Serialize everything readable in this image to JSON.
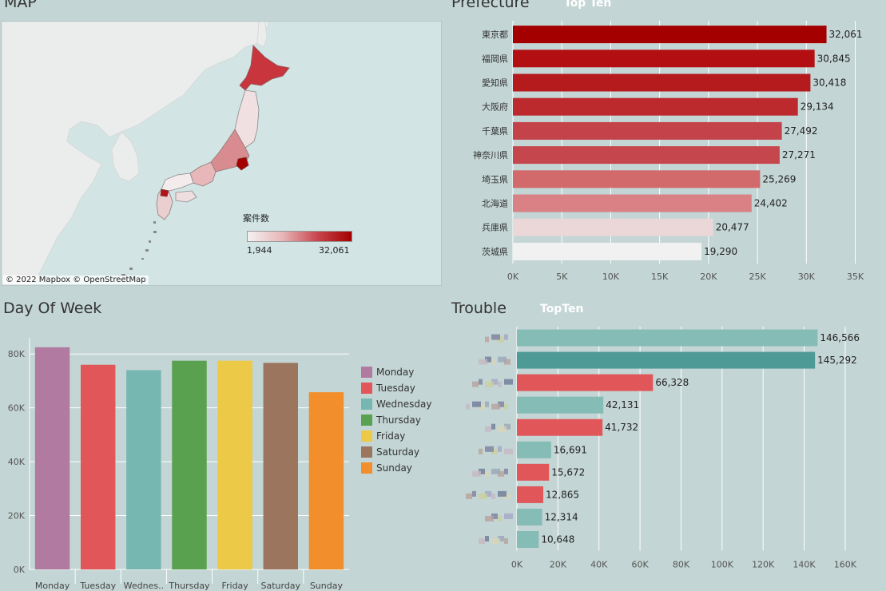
{
  "map": {
    "title": "MAP",
    "legend": {
      "title": "案件数",
      "min_label": "1,944",
      "max_label": "32,061"
    },
    "attribution": "© 2022 Mapbox  © OpenStreetMap"
  },
  "prefecture": {
    "title": "Prefecture",
    "subtitle": "Top Ten"
  },
  "day_of_week": {
    "title": "Day Of Week"
  },
  "trouble": {
    "title": "Trouble",
    "subtitle": "TopTen"
  },
  "chart_data": [
    {
      "id": "prefecture",
      "type": "bar",
      "orientation": "horizontal",
      "categories": [
        "東京都",
        "福岡県",
        "愛知県",
        "大阪府",
        "千葉県",
        "神奈川県",
        "埼玉県",
        "北海道",
        "兵庫県",
        "茨城県"
      ],
      "values": [
        32061,
        30845,
        30418,
        29134,
        27492,
        27271,
        25269,
        24402,
        20477,
        19290
      ],
      "value_labels": [
        "32,061",
        "30,845",
        "30,418",
        "29,134",
        "27,492",
        "27,271",
        "25,269",
        "24,402",
        "20,477",
        "19,290"
      ],
      "colors": [
        "#a50000",
        "#b30f12",
        "#b51a1d",
        "#bc2a2e",
        "#c4434a",
        "#c5464c",
        "#d26a6c",
        "#d98184",
        "#ebd7d8",
        "#f1f1f1"
      ],
      "xlim": [
        0,
        37000
      ],
      "xticks": [
        0,
        5000,
        10000,
        15000,
        20000,
        25000,
        30000,
        35000
      ],
      "xtick_labels": [
        "0K",
        "5K",
        "10K",
        "15K",
        "20K",
        "25K",
        "30K",
        "35K"
      ],
      "grid": true
    },
    {
      "id": "day_of_week",
      "type": "bar",
      "orientation": "vertical",
      "categories": [
        "Monday",
        "Tuesday",
        "Wednes..",
        "Thursday",
        "Friday",
        "Saturday",
        "Sunday"
      ],
      "values": [
        82500,
        76000,
        74000,
        77500,
        77500,
        76700,
        65800
      ],
      "colors": [
        "#b07aa1",
        "#e15759",
        "#76b7b2",
        "#59a14f",
        "#edc948",
        "#9c755f",
        "#f28e2b"
      ],
      "ylim": [
        0,
        86000
      ],
      "yticks": [
        0,
        20000,
        40000,
        60000,
        80000
      ],
      "ytick_labels": [
        "0K",
        "20K",
        "40K",
        "60K",
        "80K"
      ],
      "legend": {
        "position": "right",
        "entries": [
          "Monday",
          "Tuesday",
          "Wednesday",
          "Thursday",
          "Friday",
          "Saturday",
          "Sunday"
        ]
      },
      "grid": true
    },
    {
      "id": "trouble",
      "type": "bar",
      "orientation": "horizontal",
      "values": [
        146566,
        145292,
        66328,
        42131,
        41732,
        16691,
        15672,
        12865,
        12314,
        10648
      ],
      "value_labels": [
        "146,566",
        "145,292",
        "66,328",
        "42,131",
        "41,732",
        "16,691",
        "15,672",
        "12,865",
        "12,314",
        "10,648"
      ],
      "colors": [
        "#86bcb6",
        "#4e9a97",
        "#e15759",
        "#86bcb6",
        "#e15759",
        "#86bcb6",
        "#e15759",
        "#e15759",
        "#86bcb6",
        "#86bcb6"
      ],
      "xlim": [
        0,
        176000
      ],
      "xticks": [
        0,
        20000,
        40000,
        60000,
        80000,
        100000,
        120000,
        140000,
        160000
      ],
      "xtick_labels": [
        "0K",
        "20K",
        "40K",
        "60K",
        "80K",
        "100K",
        "120K",
        "140K",
        "160K"
      ],
      "grid": true
    }
  ]
}
